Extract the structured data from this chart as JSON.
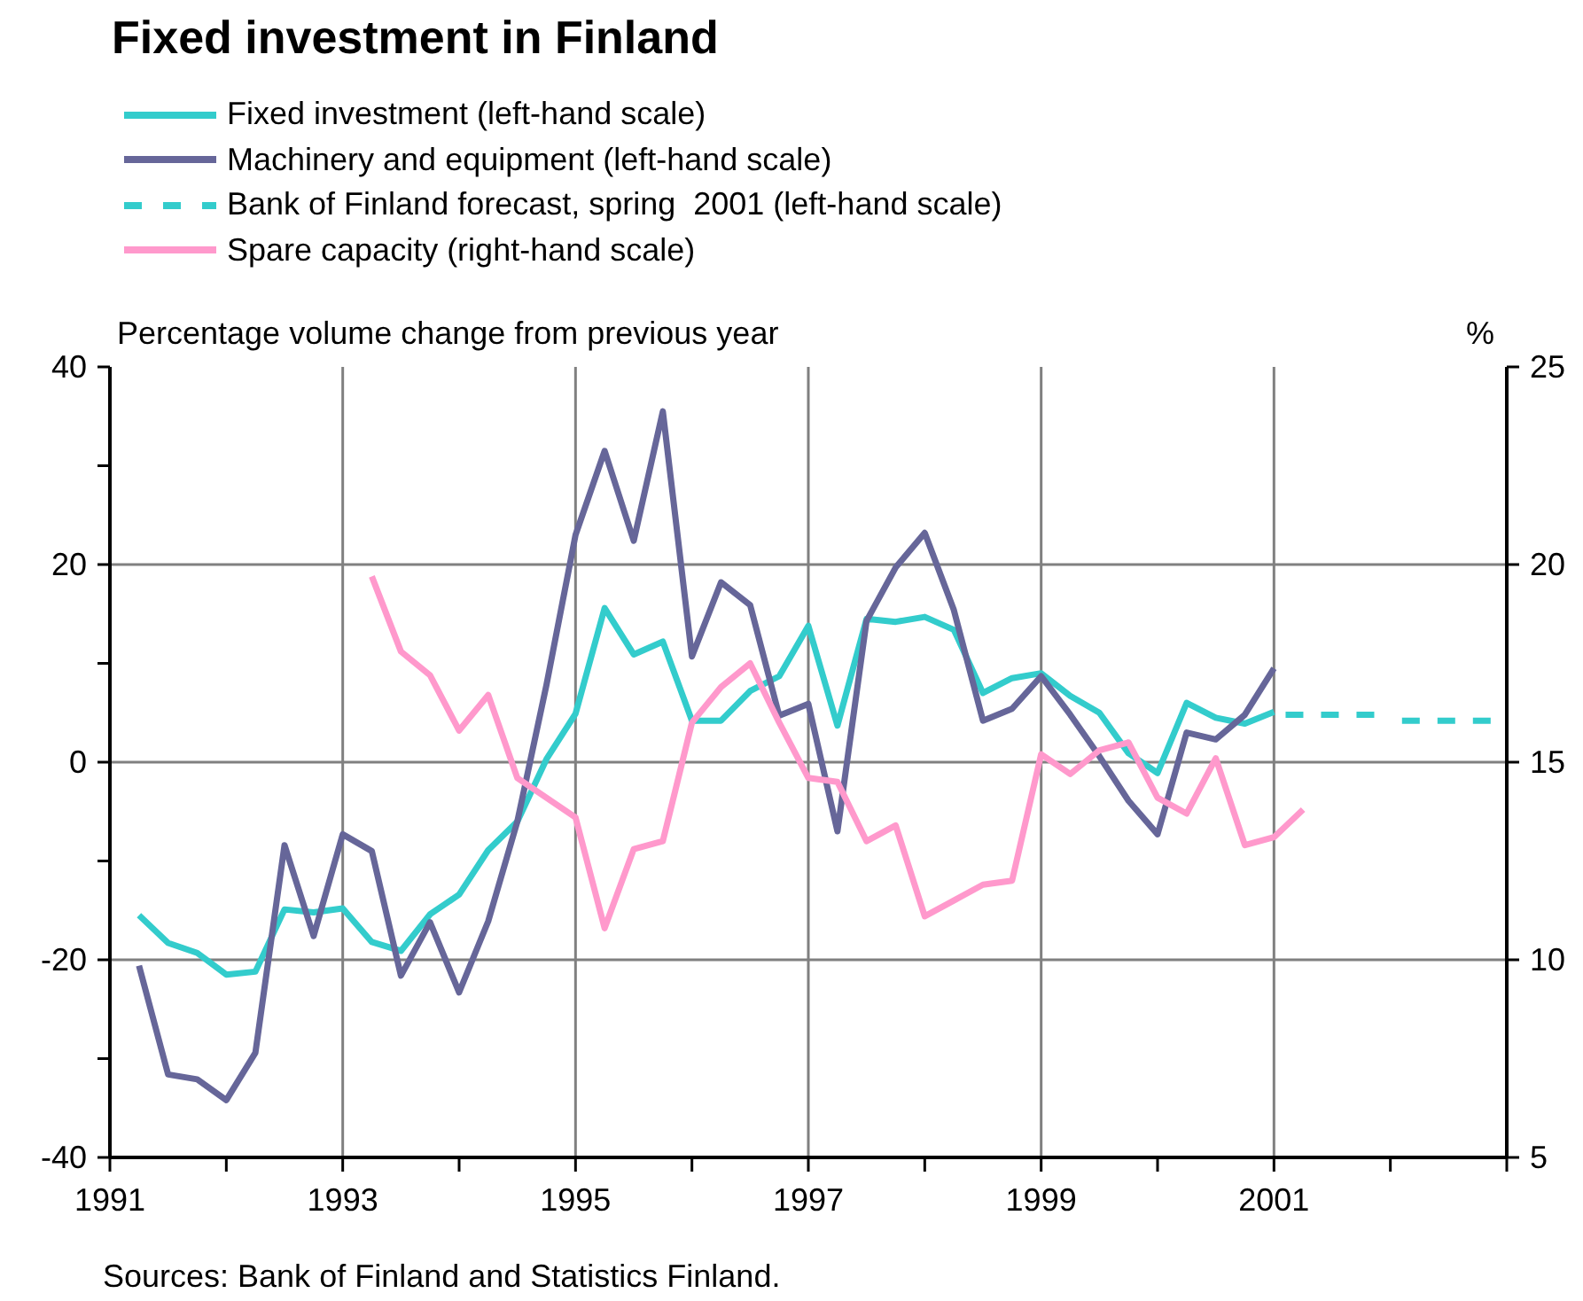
{
  "chart_data": {
    "type": "line",
    "title": "Fixed investment in Finland",
    "ylabel": "Percentage volume change from previous year",
    "y2label": "%",
    "xlim": [
      1991,
      2003
    ],
    "xticks": [
      {
        "value": 1991,
        "label": "1991"
      },
      {
        "value": 1992,
        "label": null
      },
      {
        "value": 1993,
        "label": "1993"
      },
      {
        "value": 1994,
        "label": null
      },
      {
        "value": 1995,
        "label": "1995"
      },
      {
        "value": 1996,
        "label": null
      },
      {
        "value": 1997,
        "label": "1997"
      },
      {
        "value": 1998,
        "label": null
      },
      {
        "value": 1999,
        "label": "1999"
      },
      {
        "value": 2000,
        "label": null
      },
      {
        "value": 2001,
        "label": "2001"
      },
      {
        "value": 2002,
        "label": null
      },
      {
        "value": 2003,
        "label": null
      }
    ],
    "ylim": [
      -40,
      40
    ],
    "yticks": [
      -40,
      {
        "value": -30,
        "label": null
      },
      -20,
      {
        "value": -10,
        "label": null
      },
      0,
      {
        "value": 10,
        "label": null
      },
      20,
      {
        "value": 30,
        "label": null
      },
      40
    ],
    "y2lim": [
      5,
      25
    ],
    "y2ticks": [
      5,
      10,
      15,
      20,
      25
    ],
    "grid": true,
    "legend": "top left",
    "marker": "none",
    "series": [
      {
        "name": "Fixed investment (left-hand scale)",
        "color": "#33cccc",
        "line_style": "solid",
        "x": [
          1991.25,
          1991.5,
          1991.75,
          1992,
          1992.25,
          1992.5,
          1992.75,
          1993,
          1993.25,
          1993.5,
          1993.75,
          1994,
          1994.25,
          1994.5,
          1994.75,
          1995,
          1995.25,
          1995.5,
          1995.75,
          1996,
          1996.25,
          1996.5,
          1996.75,
          1997,
          1997.25,
          1997.5,
          1997.75,
          1998,
          1998.25,
          1998.5,
          1998.75,
          1999,
          1999.25,
          1999.5,
          1999.75,
          2000,
          2000.25,
          2000.5,
          2000.75,
          2001
        ],
        "values": [
          -15.5,
          -18.3,
          -19.3,
          -21.5,
          -21.2,
          -14.9,
          -15.2,
          -14.8,
          -18.2,
          -19.1,
          -15.4,
          -13.4,
          -8.9,
          -6.0,
          0.3,
          4.9,
          15.6,
          10.9,
          12.2,
          4.2,
          4.2,
          7.2,
          8.7,
          13.8,
          3.7,
          14.5,
          14.2,
          14.7,
          13.4,
          7.0,
          8.5,
          9.0,
          6.7,
          5.0,
          0.9,
          -1.1,
          6.0,
          4.5,
          3.9,
          5.1
        ]
      },
      {
        "name": "Machinery and equipment (left-hand scale)",
        "color": "#666699",
        "line_style": "solid",
        "x": [
          1991.25,
          1991.5,
          1991.75,
          1992,
          1992.25,
          1992.5,
          1992.75,
          1993,
          1993.25,
          1993.5,
          1993.75,
          1994,
          1994.25,
          1994.5,
          1994.75,
          1995,
          1995.25,
          1995.5,
          1995.75,
          1996,
          1996.25,
          1996.5,
          1996.75,
          1997,
          1997.25,
          1997.5,
          1997.75,
          1998,
          1998.25,
          1998.5,
          1998.75,
          1999,
          1999.25,
          1999.5,
          1999.75,
          2000,
          2000.25,
          2000.5,
          2000.75,
          2001
        ],
        "values": [
          -20.6,
          -31.6,
          -32.1,
          -34.2,
          -29.4,
          -8.4,
          -17.6,
          -7.3,
          -9.0,
          -21.6,
          -16.2,
          -23.3,
          -16.1,
          -6.0,
          7.8,
          23.0,
          31.5,
          22.4,
          35.5,
          10.7,
          18.2,
          15.9,
          4.7,
          5.9,
          -7.0,
          14.3,
          19.7,
          23.2,
          15.4,
          4.2,
          5.4,
          8.7,
          4.8,
          0.6,
          -3.9,
          -7.3,
          3.0,
          2.3,
          4.8,
          9.5
        ]
      },
      {
        "name": "Bank of Finland forecast, spring  2001 (left-hand scale)",
        "color": "#33cccc",
        "line_style": "dashed",
        "x": [
          2001.1,
          2001.9,
          2002,
          2002.1,
          2002.9
        ],
        "values": [
          4.8,
          4.8,
          null,
          4.2,
          4.2
        ]
      },
      {
        "name": "Spare capacity (right-hand scale)",
        "color": "#ff99cc",
        "line_style": "solid",
        "axis": "y2",
        "x": [
          1993.25,
          1993.5,
          1993.75,
          1994,
          1994.25,
          1994.5,
          1994.75,
          1995,
          1995.25,
          1995.5,
          1995.75,
          1996,
          1996.25,
          1996.5,
          1996.75,
          1997,
          1997.25,
          1997.5,
          1997.75,
          1998,
          1998.25,
          1998.5,
          1998.75,
          1999,
          1999.25,
          1999.5,
          1999.75,
          2000,
          2000.25,
          2000.5,
          2000.75,
          2001,
          2001.25
        ],
        "values": [
          19.7,
          17.8,
          17.2,
          15.8,
          16.7,
          14.6,
          14.1,
          13.6,
          10.8,
          12.8,
          13.0,
          16.0,
          16.9,
          17.5,
          16.0,
          14.6,
          14.5,
          13.0,
          13.4,
          11.1,
          11.5,
          11.9,
          12.0,
          15.2,
          14.7,
          15.3,
          15.5,
          14.1,
          13.7,
          15.1,
          12.9,
          13.1,
          13.8
        ]
      }
    ],
    "annotations": [
      "Sources: Bank of Finland and Statistics Finland."
    ]
  }
}
